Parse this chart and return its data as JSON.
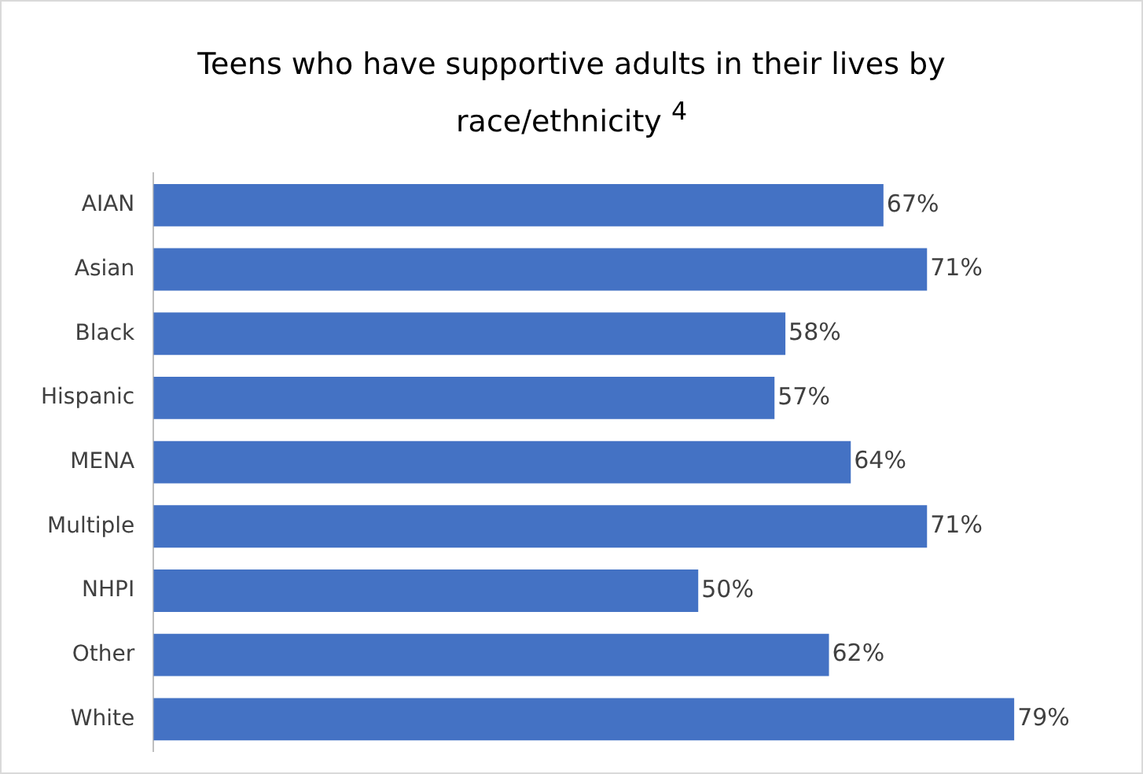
{
  "chart_data": {
    "type": "bar",
    "orientation": "horizontal",
    "title": "Teens who have supportive adults in their lives by race/ethnicity $^{4}$",
    "categories": [
      "AIAN",
      "Asian",
      "Black",
      "Hispanic",
      "MENA",
      "Multiple",
      "NHPI",
      "Other",
      "White"
    ],
    "values": [
      67,
      71,
      58,
      57,
      64,
      71,
      50,
      62,
      79
    ],
    "color": "#4472c4",
    "data_labels": true,
    "value_labels": [
      "67%",
      "71%",
      "58%",
      "57%",
      "64%",
      "71%",
      "50%",
      "62%",
      "79%"
    ],
    "grid": false,
    "legend": false
  }
}
